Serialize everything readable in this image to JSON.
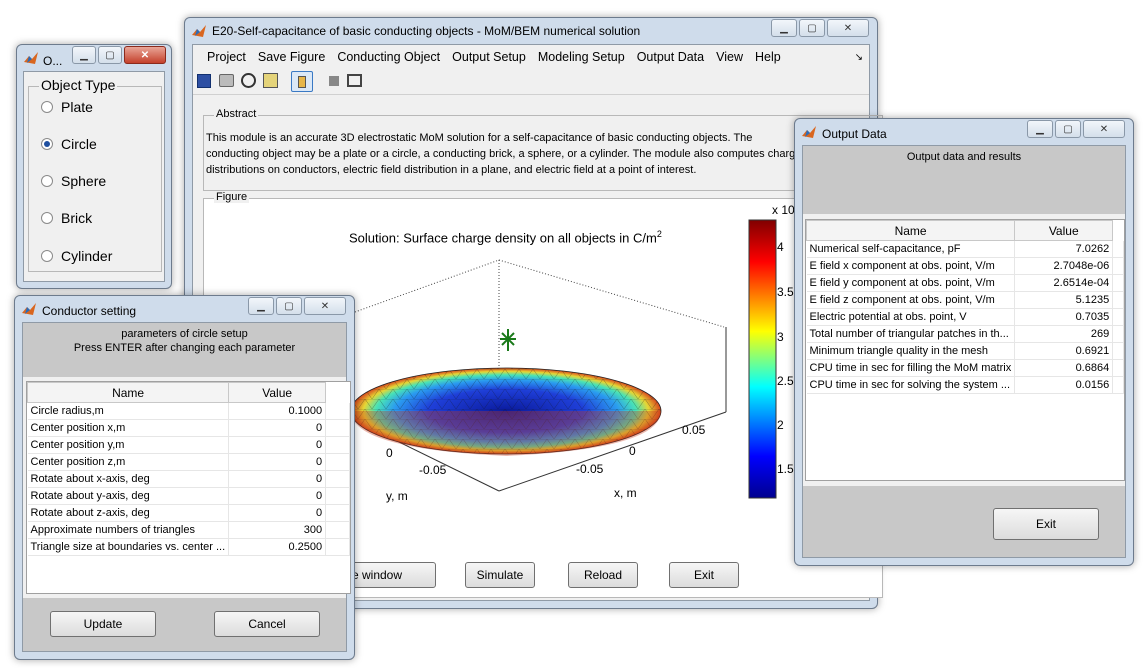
{
  "main": {
    "title": "E20-Self-capacitance of basic conducting objects - MoM/BEM numerical solution",
    "menu": [
      "Project",
      "Save Figure",
      "Conducting Object",
      "Output Setup",
      "Modeling Setup",
      "Output Data",
      "View",
      "Help"
    ],
    "abstract_label": "Abstract",
    "abstract_text": "This module is an accurate 3D electrostatic MoM solution for a self-capacitance of basic conducting objects. The conducting object may be a plate or a circle, a conducting brick, a sphere, or a cylinder. The module also computes charge distributions on conductors, electric field distribution in a plane, and electric field at a point of interest.",
    "figure_label": "Figure",
    "buttons": {
      "separate": "Separate window",
      "simulate": "Simulate",
      "reload": "Reload",
      "exit": "Exit"
    }
  },
  "plot": {
    "title": "Solution: Surface charge density on all objects in C/m",
    "title_sup": "2",
    "colorbar_exp": "x 10",
    "colorbar_ticks": [
      "4",
      "3.5",
      "3",
      "2.5",
      "2",
      "1.5"
    ],
    "x_ticks": [
      "0.05",
      "0",
      "-0.05"
    ],
    "y_ticks": [
      "0",
      "-0.05"
    ],
    "xlabel": "x, m",
    "ylabel": "y, m"
  },
  "object_type": {
    "title": "O...",
    "group_label": "Object Type",
    "options": [
      "Plate",
      "Circle",
      "Sphere",
      "Brick",
      "Cylinder"
    ],
    "selected": "Circle"
  },
  "conductor": {
    "title": "Conductor setting",
    "header1": "parameters of circle setup",
    "header2": "Press ENTER after changing each parameter",
    "col_name": "Name",
    "col_value": "Value",
    "rows": [
      [
        "Circle radius,m",
        "0.1000"
      ],
      [
        "Center position x,m",
        "0"
      ],
      [
        "Center position y,m",
        "0"
      ],
      [
        "Center position z,m",
        "0"
      ],
      [
        "Rotate about x-axis, deg",
        "0"
      ],
      [
        "Rotate about y-axis, deg",
        "0"
      ],
      [
        "Rotate about z-axis, deg",
        "0"
      ],
      [
        "Approximate numbers of triangles",
        "300"
      ],
      [
        "Triangle size at boundaries vs. center ...",
        "0.2500"
      ]
    ],
    "update": "Update",
    "cancel": "Cancel"
  },
  "output": {
    "title": "Output Data",
    "header": "Output data and results",
    "col_name": "Name",
    "col_value": "Value",
    "rows": [
      [
        "Numerical self-capacitance, pF",
        "7.0262"
      ],
      [
        "E field x component at obs. point, V/m",
        "2.7048e-06"
      ],
      [
        "E field y component at obs. point, V/m",
        "2.6514e-04"
      ],
      [
        "E field z component at obs. point, V/m",
        "5.1235"
      ],
      [
        "Electric potential at obs. point, V",
        "0.7035"
      ],
      [
        "Total number of triangular patches in th...",
        "269"
      ],
      [
        "Minimum triangle quality in the mesh",
        "0.6921"
      ],
      [
        "CPU time in sec for filling the MoM matrix",
        "0.6864"
      ],
      [
        "CPU time in sec for solving the system ...",
        "0.0156"
      ]
    ],
    "exit": "Exit"
  }
}
